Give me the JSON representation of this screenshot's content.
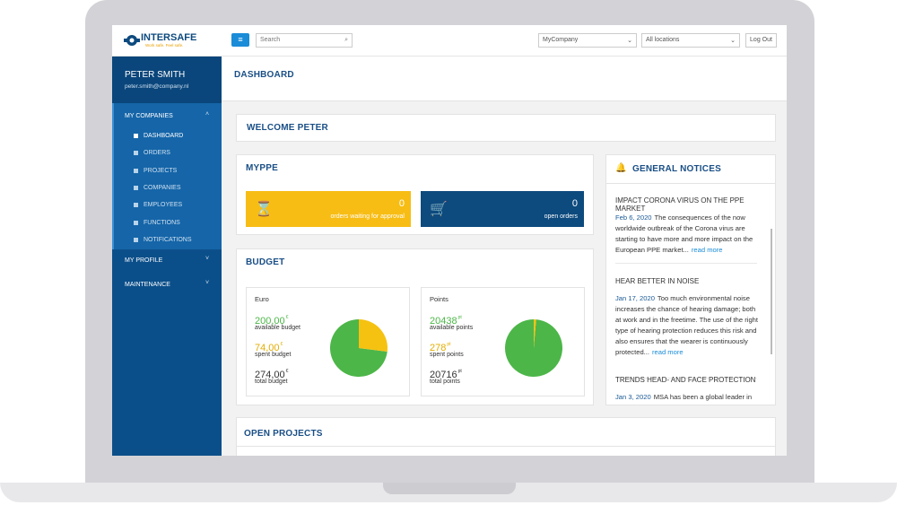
{
  "header": {
    "logo": "INTERSAFE",
    "tagline": "Work safe. Feel safe.",
    "search_placeholder": "Search",
    "company_select": "MyCompany",
    "location_select": "All locations",
    "logout": "Log Out"
  },
  "sidebar": {
    "user_name": "PETER SMITH",
    "user_email": "peter.smith@company.nl",
    "sections": [
      {
        "label": "MY COMPANIES",
        "items": [
          "DASHBOARD",
          "ORDERS",
          "PROJECTS",
          "COMPANIES",
          "EMPLOYEES",
          "FUNCTIONS",
          "NOTIFICATIONS"
        ]
      },
      {
        "label": "MY PROFILE"
      },
      {
        "label": "MAINTENANCE"
      }
    ]
  },
  "page_title": "DASHBOARD",
  "welcome": "WELCOME PETER",
  "myppe": {
    "title": "MYPPE",
    "tiles": [
      {
        "value": 0,
        "label": "orders waiting for approval"
      },
      {
        "value": 0,
        "label": "open orders"
      }
    ]
  },
  "budget": {
    "title": "BUDGET",
    "panels": [
      {
        "title": "Euro",
        "items": [
          {
            "value": 200,
            "value_label": "200,00",
            "unit": "€",
            "label": "available budget",
            "color": "#4cb648"
          },
          {
            "value": 74,
            "value_label": "74,00",
            "unit": "€",
            "label": "spent budget",
            "color": "#f5c211"
          },
          {
            "value": 274,
            "value_label": "274,00",
            "unit": "€",
            "label": "total budget"
          }
        ]
      },
      {
        "title": "Points",
        "items": [
          {
            "value": 20438,
            "unit": "pt",
            "label": "available points",
            "color": "#4cb648"
          },
          {
            "value": 278,
            "unit": "pt",
            "label": "spent points",
            "color": "#f5c211"
          },
          {
            "value": 20716,
            "unit": "pt",
            "label": "total points"
          }
        ]
      }
    ]
  },
  "notices": {
    "title": "GENERAL NOTICES",
    "items": [
      {
        "title": "IMPACT CORONA VIRUS ON THE PPE MARKET",
        "date": "Feb 6, 2020",
        "text": "The consequences of the now worldwide outbreak of the Corona virus are starting to have more and more impact on the European PPE market...",
        "link": "read more"
      },
      {
        "title": "HEAR BETTER IN NOISE",
        "date": "Jan 17, 2020",
        "text": "Too much environmental noise increases the chance of hearing damage; both at work and in the freetime. The use of the right type of hearing protection reduces this risk and also ensures that the wearer is continuously protected...",
        "link": "read more"
      },
      {
        "title": "TRENDS HEAD- AND FACE PROTECTION",
        "date": "Jan 3, 2020",
        "text": "MSA has been a global leader in"
      }
    ]
  },
  "open_projects": {
    "title": "OPEN PROJECTS"
  }
}
